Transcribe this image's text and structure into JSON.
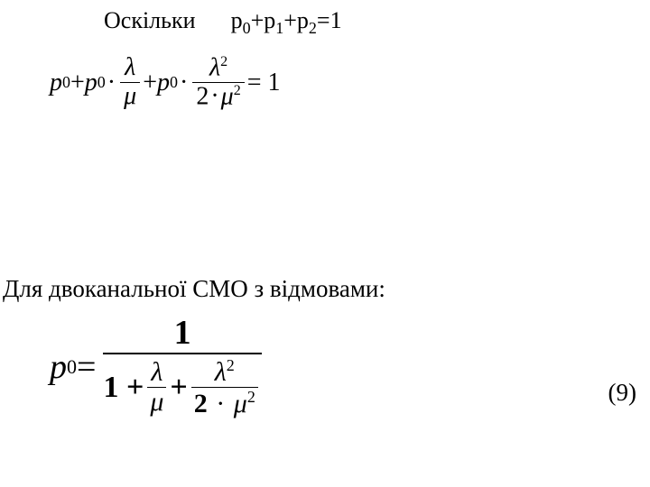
{
  "line1_prefix": "Оскільки",
  "line1_eq_lhs1": "р",
  "line1_eq_sub0": "0",
  "line1_eq_plus": "+",
  "line1_eq_lhs2": "р",
  "line1_eq_sub1": "1",
  "line1_eq_lhs3": "р",
  "line1_eq_sub2": "2",
  "line1_eq_rhs": "=1",
  "eq1_p": "p",
  "eq1_sub0": "0",
  "eq1_plus": " + ",
  "eq1_dot": "·",
  "eq1_lambda": "λ",
  "eq1_mu": "μ",
  "eq1_sq": "2",
  "eq1_two": "2",
  "eq1_equals_one": " = 1",
  "line2_text": "Для двоканальної СМО з відмовами:",
  "eq2_p": "p",
  "eq2_sub0": "0",
  "eq2_eq": " = ",
  "eq2_one": "1",
  "eq2_oneplus": "1 + ",
  "eq2_plus": " + ",
  "eq2_lambda": "λ",
  "eq2_mu": "μ",
  "eq2_sq": "2",
  "eq2_two": "2",
  "eq2_dot": "·",
  "eqnum": "(9)"
}
